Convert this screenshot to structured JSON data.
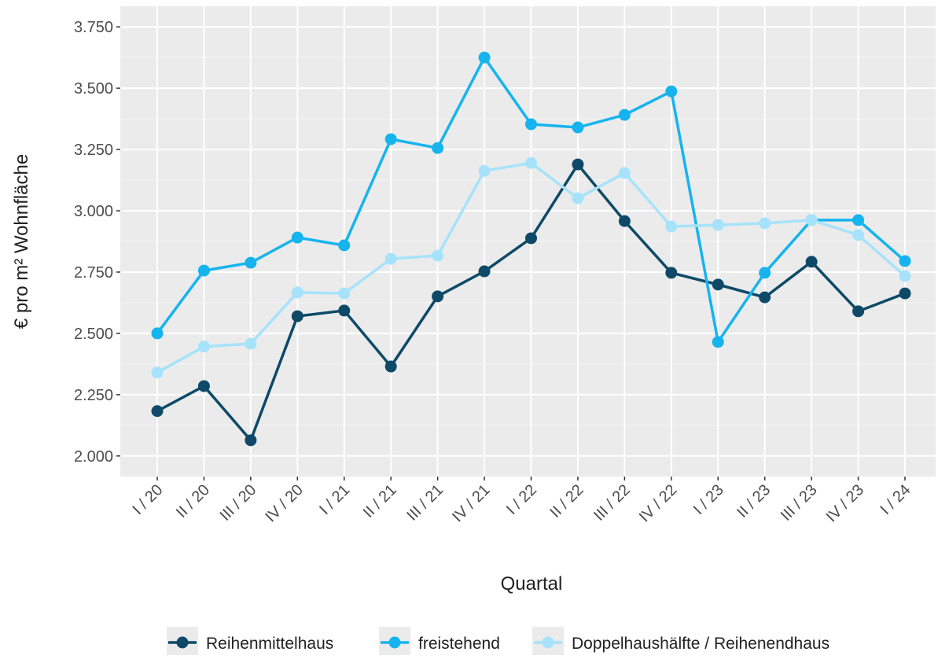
{
  "chart_data": {
    "type": "line",
    "x_label": "Quartal",
    "y_label": "€ pro m² Wohnfläche",
    "categories": [
      "I / 20",
      "II / 20",
      "III / 20",
      "IV / 20",
      "I / 21",
      "II / 21",
      "III / 21",
      "IV / 21",
      "I / 22",
      "II / 22",
      "III / 22",
      "IV / 22",
      "I / 23",
      "II / 23",
      "III / 23",
      "IV / 23",
      "I / 24"
    ],
    "series": [
      {
        "name": "Reihenmittelhaus",
        "color": "#0e4a68",
        "values": [
          2183,
          2285,
          2064,
          2570,
          2593,
          2365,
          2651,
          2753,
          2888,
          3189,
          2958,
          2747,
          2699,
          2647,
          2792,
          2590,
          2663
        ]
      },
      {
        "name": "freistehend",
        "color": "#16b4ee",
        "values": [
          2500,
          2756,
          2788,
          2891,
          2859,
          3292,
          3256,
          3625,
          3353,
          3340,
          3391,
          3487,
          2465,
          2747,
          2962,
          2962,
          2795
        ]
      },
      {
        "name": "Doppelhaushälfte / Reihenendhaus",
        "color": "#a6e3fb",
        "values": [
          2340,
          2446,
          2458,
          2667,
          2663,
          2804,
          2817,
          3163,
          3195,
          3051,
          3154,
          2936,
          2942,
          2949,
          2962,
          2901,
          2734
        ]
      }
    ],
    "ylim": [
      1916,
      3834
    ],
    "yticks": [
      {
        "value": 2000,
        "label": "2.000"
      },
      {
        "value": 2250,
        "label": "2.250"
      },
      {
        "value": 2500,
        "label": "2.500"
      },
      {
        "value": 2750,
        "label": "2.750"
      },
      {
        "value": 3000,
        "label": "3.000"
      },
      {
        "value": 3250,
        "label": "3.250"
      },
      {
        "value": 3500,
        "label": "3.500"
      },
      {
        "value": 3750,
        "label": "3.750"
      }
    ],
    "grid": true,
    "legend": "bottom"
  }
}
